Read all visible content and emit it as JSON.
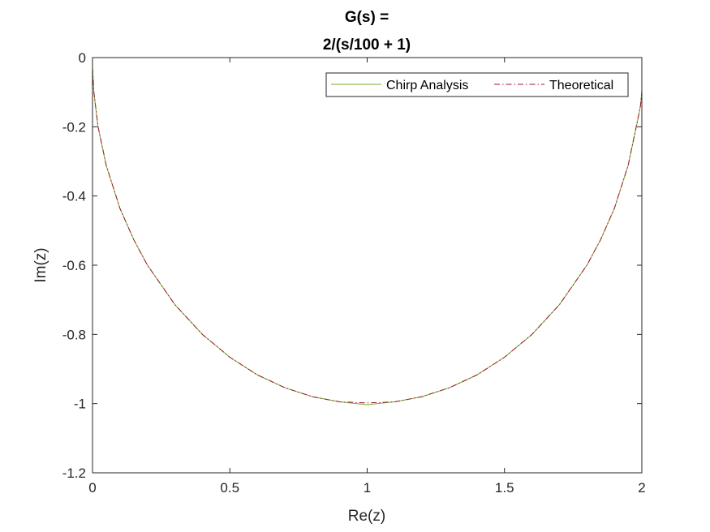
{
  "chart_data": {
    "type": "line",
    "title_lines": [
      "G(s) =",
      "2/(s/100 + 1)"
    ],
    "xlabel": "Re(z)",
    "ylabel": "Im(z)",
    "xlim": [
      0,
      2
    ],
    "ylim": [
      -1.2,
      0
    ],
    "xticks": [
      0,
      0.5,
      1,
      1.5,
      2
    ],
    "xtick_labels": [
      "0",
      "0.5",
      "1",
      "1.5",
      "2"
    ],
    "yticks": [
      0,
      -0.2,
      -0.4,
      -0.6,
      -0.8,
      -1,
      -1.2
    ],
    "ytick_labels": [
      "0",
      "-0.2",
      "-0.4",
      "-0.6",
      "-0.8",
      "-1",
      "-1.2"
    ],
    "grid": false,
    "box": true,
    "legend_position": "top-right",
    "series": [
      {
        "name": "Chirp Analysis",
        "color": "#77AC30",
        "line_style": "solid",
        "x": [
          0.0,
          0.005,
          0.02,
          0.05,
          0.1,
          0.15,
          0.2,
          0.3,
          0.4,
          0.5,
          0.6,
          0.7,
          0.8,
          0.9,
          1.0,
          1.1,
          1.2,
          1.3,
          1.4,
          1.5,
          1.6,
          1.7,
          1.8,
          1.85,
          1.9,
          1.95,
          1.98,
          1.995,
          2.0
        ],
        "y": [
          -0.03,
          -0.1,
          -0.2,
          -0.312,
          -0.436,
          -0.526,
          -0.6,
          -0.714,
          -0.8,
          -0.866,
          -0.917,
          -0.954,
          -0.98,
          -0.995,
          -1.003,
          -0.995,
          -0.98,
          -0.954,
          -0.917,
          -0.866,
          -0.8,
          -0.714,
          -0.6,
          -0.526,
          -0.436,
          -0.312,
          -0.2,
          -0.14,
          -0.095
        ]
      },
      {
        "name": "Theoretical",
        "color": "#A2142F",
        "line_style": "dashdot",
        "x": [
          0.0,
          0.005,
          0.02,
          0.05,
          0.1,
          0.15,
          0.2,
          0.3,
          0.4,
          0.5,
          0.6,
          0.7,
          0.8,
          0.9,
          1.0,
          1.1,
          1.2,
          1.3,
          1.4,
          1.5,
          1.6,
          1.7,
          1.8,
          1.85,
          1.9,
          1.95,
          1.98,
          1.995,
          2.0
        ],
        "y": [
          -0.03,
          -0.1,
          -0.198,
          -0.312,
          -0.436,
          -0.526,
          -0.6,
          -0.714,
          -0.8,
          -0.866,
          -0.917,
          -0.954,
          -0.98,
          -0.995,
          -0.998,
          -0.995,
          -0.98,
          -0.954,
          -0.917,
          -0.866,
          -0.8,
          -0.714,
          -0.6,
          -0.526,
          -0.436,
          -0.312,
          -0.198,
          -0.14,
          -0.1
        ]
      }
    ]
  }
}
